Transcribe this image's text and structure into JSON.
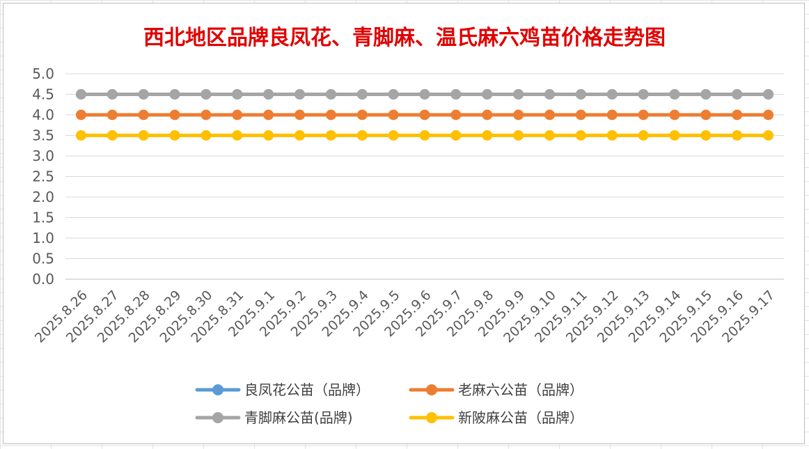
{
  "chart_data": {
    "type": "line",
    "title": "西北地区品牌良凤花、青脚麻、温氏麻六鸡苗价格走势图",
    "title_color": "#E00000",
    "x": [
      "2025.8.26",
      "2025.8.27",
      "2025.8.28",
      "2025.8.29",
      "2025.8.30",
      "2025.8.31",
      "2025.9.1",
      "2025.9.2",
      "2025.9.3",
      "2025.9.4",
      "2025.9.5",
      "2025.9.6",
      "2025.9.7",
      "2025.9.8",
      "2025.9.9",
      "2025.9.10",
      "2025.9.11",
      "2025.9.12",
      "2025.9.13",
      "2025.9.14",
      "2025.9.15",
      "2025.9.16",
      "2025.9.17"
    ],
    "ylim": [
      0,
      5
    ],
    "yticks": [
      "0.0",
      "0.5",
      "1.0",
      "1.5",
      "2.0",
      "2.5",
      "3.0",
      "3.5",
      "4.0",
      "4.5",
      "5.0"
    ],
    "grid": true,
    "legend_position": "bottom",
    "series": [
      {
        "name": "良凤花公苗（品牌）",
        "color": "#5B9BD5",
        "values": [
          4.5,
          4.5,
          4.5,
          4.5,
          4.5,
          4.5,
          4.5,
          4.5,
          4.5,
          4.5,
          4.5,
          4.5,
          4.5,
          4.5,
          4.5,
          4.5,
          4.5,
          4.5,
          4.5,
          4.5,
          4.5,
          4.5,
          4.5
        ]
      },
      {
        "name": "老麻六公苗（品牌）",
        "color": "#ED7D31",
        "values": [
          4.0,
          4.0,
          4.0,
          4.0,
          4.0,
          4.0,
          4.0,
          4.0,
          4.0,
          4.0,
          4.0,
          4.0,
          4.0,
          4.0,
          4.0,
          4.0,
          4.0,
          4.0,
          4.0,
          4.0,
          4.0,
          4.0,
          4.0
        ]
      },
      {
        "name": "青脚麻公苗(品牌)",
        "color": "#A5A5A5",
        "values": [
          4.5,
          4.5,
          4.5,
          4.5,
          4.5,
          4.5,
          4.5,
          4.5,
          4.5,
          4.5,
          4.5,
          4.5,
          4.5,
          4.5,
          4.5,
          4.5,
          4.5,
          4.5,
          4.5,
          4.5,
          4.5,
          4.5,
          4.5
        ]
      },
      {
        "name": "新陂麻公苗（品牌）",
        "color": "#FFC000",
        "values": [
          3.5,
          3.5,
          3.5,
          3.5,
          3.5,
          3.5,
          3.5,
          3.5,
          3.5,
          3.5,
          3.5,
          3.5,
          3.5,
          3.5,
          3.5,
          3.5,
          3.5,
          3.5,
          3.5,
          3.5,
          3.5,
          3.5,
          3.5
        ]
      }
    ]
  }
}
